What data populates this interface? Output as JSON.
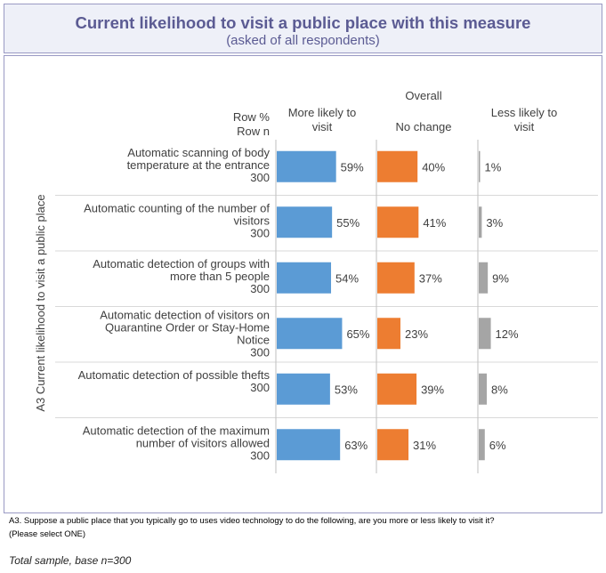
{
  "header": {
    "title": "Current likelihood to visit a public place with this measure",
    "subtitle": "(asked of all respondents)"
  },
  "chart_data": {
    "type": "bar",
    "ylabel": "A3 Current likelihood to visit a public place",
    "header_group": "Overall",
    "row_header": [
      "Row %",
      "Row n"
    ],
    "categories": [
      [
        "Automatic scanning of body",
        "temperature at the entrance"
      ],
      [
        "Automatic counting of the number of",
        "visitors"
      ],
      [
        "Automatic detection of groups with",
        "more than 5 people"
      ],
      [
        "Automatic detection of visitors on",
        "Quarantine Order or Stay-Home",
        "Notice"
      ],
      [
        "Automatic detection of possible thefts"
      ],
      [
        "Automatic detection of the maximum",
        "number of visitors allowed"
      ]
    ],
    "row_n": [
      "300",
      "300",
      "300",
      "300",
      "300",
      "300"
    ],
    "series": [
      {
        "name": "More likely to visit",
        "header": [
          "More likely to",
          "visit"
        ],
        "color": "#5b9bd5",
        "values": [
          59,
          55,
          54,
          65,
          53,
          63
        ]
      },
      {
        "name": "No change",
        "header": [
          "No change"
        ],
        "color": "#ed7d31",
        "values": [
          40,
          41,
          37,
          23,
          39,
          31
        ]
      },
      {
        "name": "Less likely to visit",
        "header": [
          "Less likely to",
          "visit"
        ],
        "color": "#a5a5a5",
        "values": [
          1,
          3,
          9,
          12,
          8,
          6
        ]
      }
    ],
    "value_suffix": "%"
  },
  "footnote": {
    "line1": "A3. Suppose a public place that you typically go to uses video technology to do the following, are you more or less likely to visit it?",
    "line2": "(Please select ONE)"
  },
  "base_note": "Total sample, base n=300"
}
